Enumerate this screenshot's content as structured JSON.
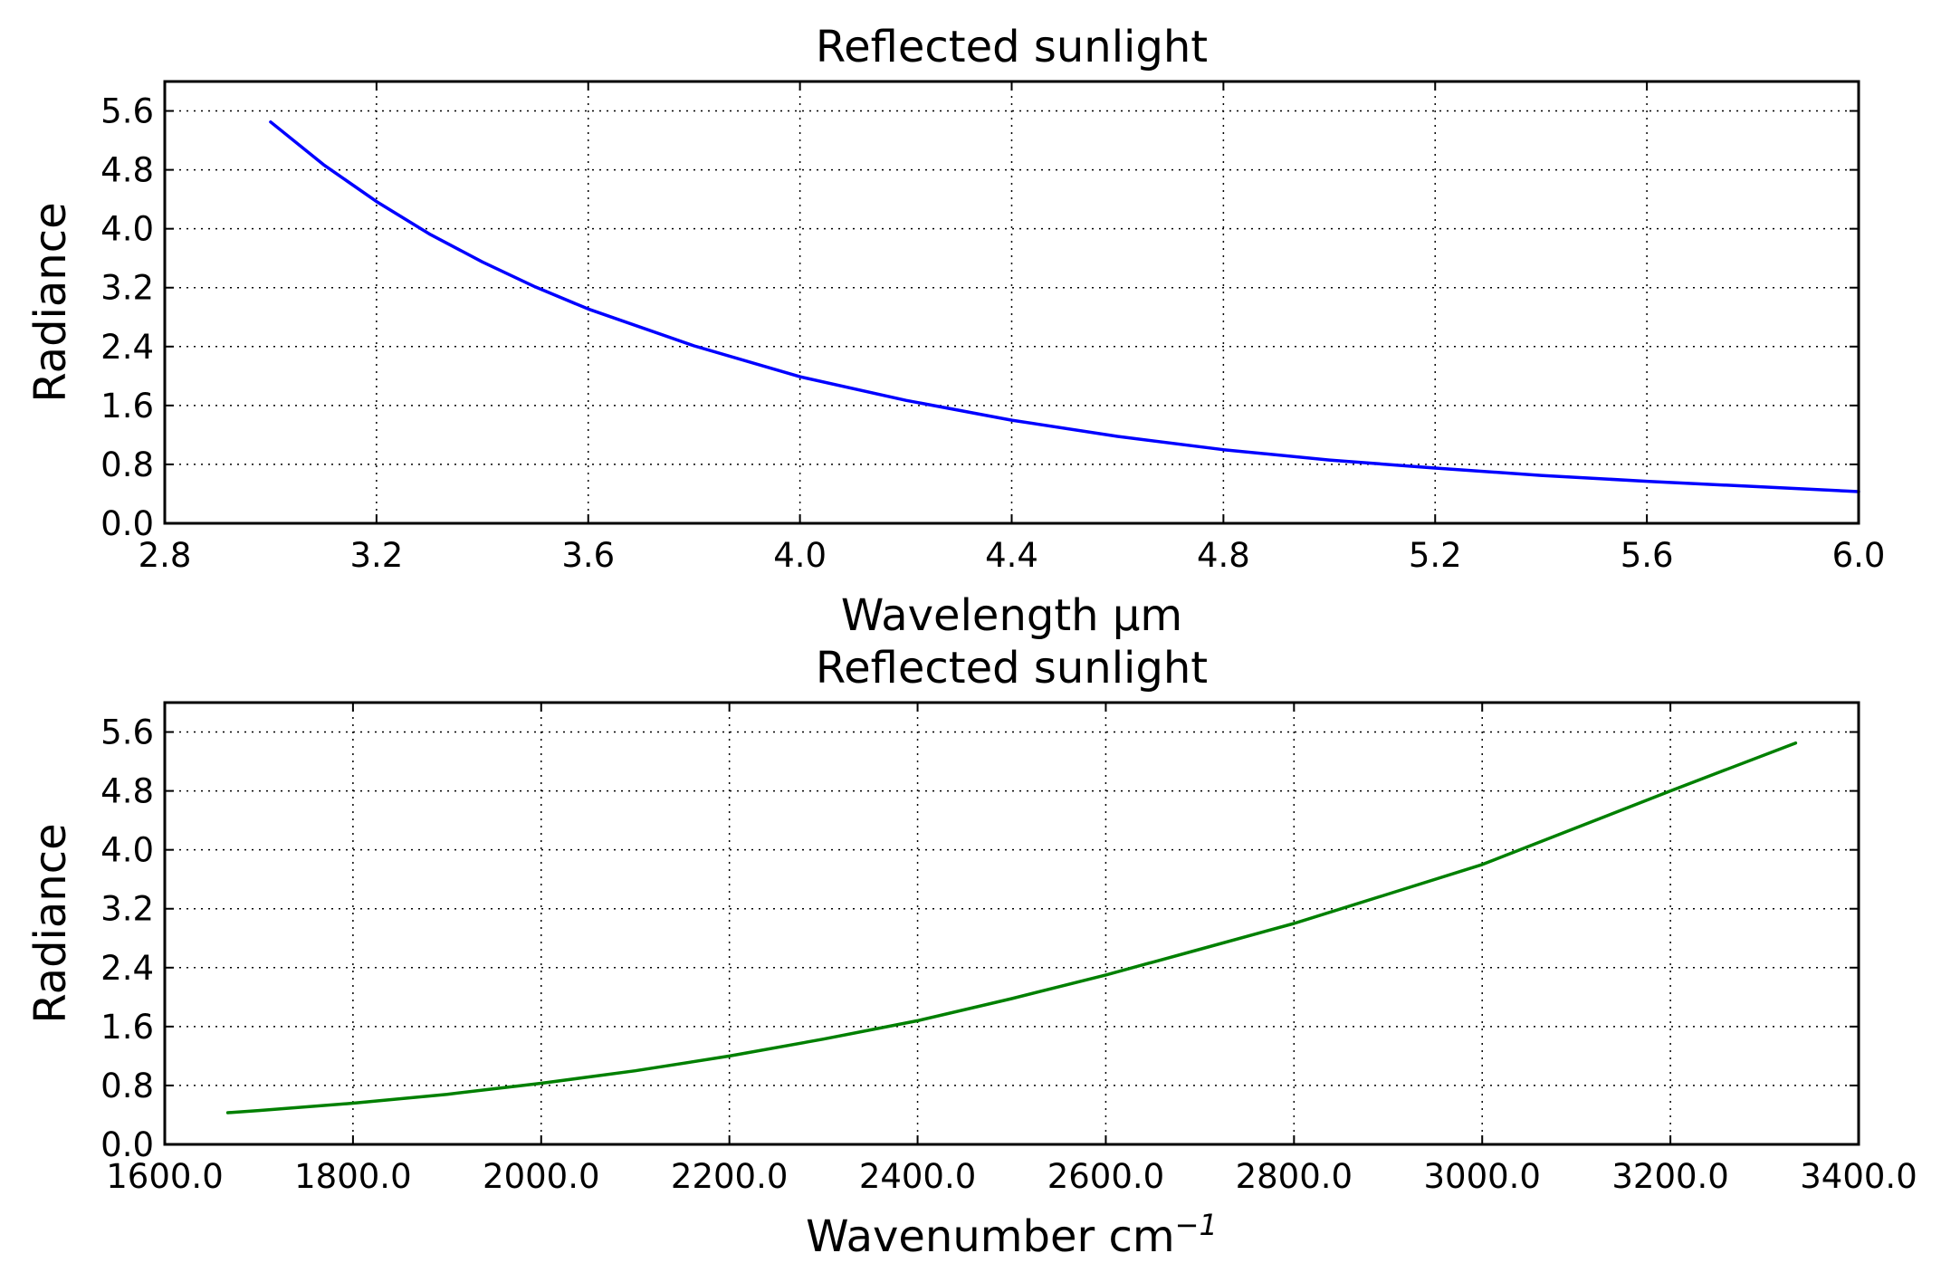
{
  "chart_data": [
    {
      "type": "line",
      "title": "Reflected sunlight",
      "xlabel": "Wavelength µm",
      "ylabel": "Radiance",
      "xlim": [
        2.8,
        6.0
      ],
      "ylim": [
        0.0,
        6.0
      ],
      "grid": true,
      "x_ticks": [
        "2.8",
        "3.2",
        "3.6",
        "4.0",
        "4.4",
        "4.8",
        "5.2",
        "5.6",
        "6.0"
      ],
      "y_ticks": [
        "0.0",
        "0.8",
        "1.6",
        "2.4",
        "3.2",
        "4.0",
        "4.8",
        "5.6"
      ],
      "series": [
        {
          "color": "#0000ff",
          "x": [
            3.0,
            3.1,
            3.2,
            3.3,
            3.4,
            3.5,
            3.6,
            3.8,
            4.0,
            4.2,
            4.4,
            4.6,
            4.8,
            5.0,
            5.2,
            5.4,
            5.6,
            5.8,
            6.0
          ],
          "y": [
            5.45,
            4.87,
            4.37,
            3.93,
            3.55,
            3.21,
            2.91,
            2.41,
            1.99,
            1.67,
            1.4,
            1.18,
            1.0,
            0.86,
            0.75,
            0.65,
            0.57,
            0.5,
            0.43
          ]
        }
      ]
    },
    {
      "type": "line",
      "title": "Reflected sunlight",
      "xlabel": "Wavenumber cm",
      "xlabel_sup": "−1",
      "ylabel": "Radiance",
      "xlim": [
        1600.0,
        3400.0
      ],
      "ylim": [
        0.0,
        6.0
      ],
      "grid": true,
      "x_ticks": [
        "1600.0",
        "1800.0",
        "2000.0",
        "2200.0",
        "2400.0",
        "2600.0",
        "2800.0",
        "3000.0",
        "3200.0",
        "3400.0"
      ],
      "y_ticks": [
        "0.0",
        "0.8",
        "1.6",
        "2.4",
        "3.2",
        "4.0",
        "4.8",
        "5.6"
      ],
      "series": [
        {
          "color": "#008000",
          "x": [
            1667,
            1700,
            1800,
            1900,
            2000,
            2100,
            2200,
            2300,
            2400,
            2500,
            2600,
            2700,
            2800,
            2900,
            3000,
            3100,
            3200,
            3333
          ],
          "y": [
            0.43,
            0.46,
            0.56,
            0.68,
            0.83,
            1.0,
            1.2,
            1.43,
            1.68,
            1.98,
            2.3,
            2.65,
            3.0,
            3.4,
            3.8,
            4.3,
            4.8,
            5.45
          ]
        }
      ]
    }
  ]
}
